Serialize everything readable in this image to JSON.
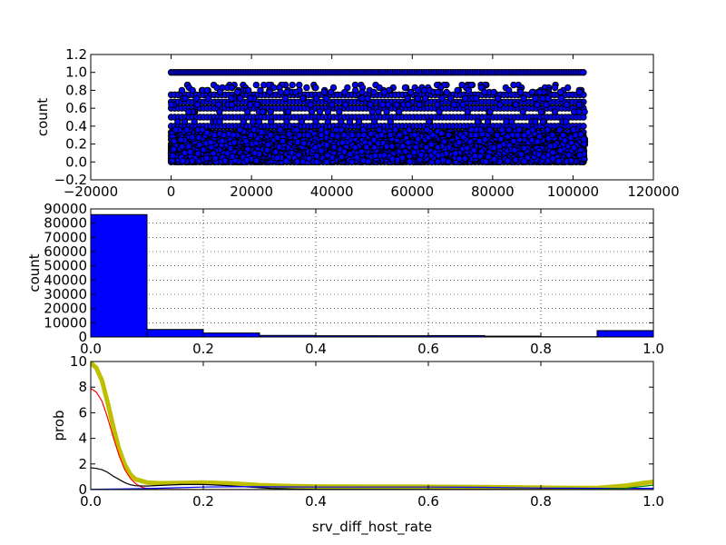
{
  "chart_data": [
    {
      "type": "scatter",
      "xlabel": "",
      "ylabel": "count",
      "xlim": [
        -20000,
        120000
      ],
      "ylim": [
        -0.2,
        1.2
      ],
      "xticks": [
        "−20000",
        "0",
        "20000",
        "40000",
        "60000",
        "80000",
        "100000",
        "120000"
      ],
      "yticks": [
        "−0.2",
        "0.0",
        "0.2",
        "0.4",
        "0.6",
        "0.8",
        "1.0",
        "1.2"
      ],
      "grid": false,
      "marker_color": "#0000ff",
      "edge_color": "#000000",
      "x_range_of_points": [
        0,
        103000
      ],
      "dense_levels": [
        1.0,
        0.75,
        0.67,
        0.6,
        0.5,
        0.4,
        0.33,
        0.29,
        0.25,
        0.2,
        0.18,
        0.17,
        0.15,
        0.14,
        0.13,
        0.12,
        0.11,
        0.1,
        0.09,
        0.08,
        0.07,
        0.06,
        0.05,
        0.04,
        0.03,
        0.02,
        0.01,
        0.0
      ],
      "sparse_levels": [
        0.86,
        0.83,
        0.8,
        0.78,
        0.71,
        0.64,
        0.56,
        0.45,
        0.36,
        0.3
      ]
    },
    {
      "type": "bar",
      "xlabel": "",
      "ylabel": "count",
      "xlim": [
        0.0,
        1.0
      ],
      "ylim": [
        0,
        90000
      ],
      "xticks": [
        "0.0",
        "0.2",
        "0.4",
        "0.6",
        "0.8",
        "1.0"
      ],
      "yticks": [
        "0",
        "10000",
        "20000",
        "30000",
        "40000",
        "50000",
        "60000",
        "70000",
        "80000",
        "90000"
      ],
      "grid": true,
      "bar_color": "#0000ff",
      "bins": [
        {
          "x0": 0.0,
          "x1": 0.1,
          "count": 86000
        },
        {
          "x0": 0.1,
          "x1": 0.2,
          "count": 5300
        },
        {
          "x0": 0.2,
          "x1": 0.3,
          "count": 2800
        },
        {
          "x0": 0.3,
          "x1": 0.4,
          "count": 1100
        },
        {
          "x0": 0.4,
          "x1": 0.5,
          "count": 900
        },
        {
          "x0": 0.5,
          "x1": 0.6,
          "count": 900
        },
        {
          "x0": 0.6,
          "x1": 0.7,
          "count": 1000
        },
        {
          "x0": 0.7,
          "x1": 0.8,
          "count": 600
        },
        {
          "x0": 0.8,
          "x1": 0.9,
          "count": 200
        },
        {
          "x0": 0.9,
          "x1": 1.0,
          "count": 4500
        }
      ]
    },
    {
      "type": "line",
      "xlabel": "srv_diff_host_rate",
      "ylabel": "prob",
      "xlim": [
        0.0,
        1.0
      ],
      "ylim": [
        0,
        10
      ],
      "xticks": [
        "0.0",
        "0.2",
        "0.4",
        "0.6",
        "0.8",
        "1.0"
      ],
      "yticks": [
        "0",
        "2",
        "4",
        "6",
        "8",
        "10"
      ],
      "grid": false,
      "series": [
        {
          "color": "#bfbf00",
          "width": 5,
          "points": [
            [
              0.0,
              9.9
            ],
            [
              0.01,
              9.5
            ],
            [
              0.02,
              8.5
            ],
            [
              0.03,
              6.8
            ],
            [
              0.04,
              4.9
            ],
            [
              0.05,
              3.2
            ],
            [
              0.06,
              2.0
            ],
            [
              0.07,
              1.2
            ],
            [
              0.08,
              0.8
            ],
            [
              0.1,
              0.55
            ],
            [
              0.12,
              0.5
            ],
            [
              0.16,
              0.52
            ],
            [
              0.2,
              0.55
            ],
            [
              0.25,
              0.48
            ],
            [
              0.3,
              0.35
            ],
            [
              0.35,
              0.28
            ],
            [
              0.4,
              0.24
            ],
            [
              0.5,
              0.22
            ],
            [
              0.6,
              0.22
            ],
            [
              0.7,
              0.2
            ],
            [
              0.8,
              0.15
            ],
            [
              0.85,
              0.12
            ],
            [
              0.9,
              0.12
            ],
            [
              0.95,
              0.3
            ],
            [
              0.98,
              0.5
            ],
            [
              1.0,
              0.6
            ]
          ]
        },
        {
          "color": "#ff0000",
          "width": 1.2,
          "points": [
            [
              0.0,
              7.9
            ],
            [
              0.01,
              7.6
            ],
            [
              0.02,
              6.9
            ],
            [
              0.03,
              5.6
            ],
            [
              0.04,
              4.1
            ],
            [
              0.05,
              2.7
            ],
            [
              0.06,
              1.6
            ],
            [
              0.07,
              0.9
            ],
            [
              0.08,
              0.45
            ],
            [
              0.09,
              0.2
            ],
            [
              0.1,
              0.08
            ],
            [
              0.12,
              0.02
            ],
            [
              0.2,
              0.0
            ],
            [
              1.0,
              0.0
            ]
          ]
        },
        {
          "color": "#000000",
          "width": 1.2,
          "points": [
            [
              0.0,
              1.7
            ],
            [
              0.01,
              1.65
            ],
            [
              0.02,
              1.55
            ],
            [
              0.03,
              1.35
            ],
            [
              0.04,
              1.05
            ],
            [
              0.05,
              0.8
            ],
            [
              0.06,
              0.55
            ],
            [
              0.07,
              0.38
            ],
            [
              0.08,
              0.3
            ],
            [
              0.1,
              0.28
            ],
            [
              0.12,
              0.32
            ],
            [
              0.16,
              0.4
            ],
            [
              0.2,
              0.4
            ],
            [
              0.24,
              0.32
            ],
            [
              0.28,
              0.2
            ],
            [
              0.32,
              0.1
            ],
            [
              0.36,
              0.04
            ],
            [
              0.4,
              0.02
            ],
            [
              1.0,
              0.0
            ]
          ]
        },
        {
          "color": "#0000ff",
          "width": 1.2,
          "points": [
            [
              0.0,
              0.02
            ],
            [
              0.05,
              0.05
            ],
            [
              0.1,
              0.08
            ],
            [
              0.15,
              0.14
            ],
            [
              0.2,
              0.2
            ],
            [
              0.25,
              0.22
            ],
            [
              0.3,
              0.22
            ],
            [
              0.4,
              0.2
            ],
            [
              0.5,
              0.2
            ],
            [
              0.6,
              0.2
            ],
            [
              0.7,
              0.18
            ],
            [
              0.8,
              0.12
            ],
            [
              0.9,
              0.1
            ],
            [
              1.0,
              0.1
            ]
          ]
        },
        {
          "color": "#008000",
          "width": 1.2,
          "points": [
            [
              0.0,
              0.0
            ],
            [
              0.85,
              0.0
            ],
            [
              0.9,
              0.02
            ],
            [
              0.95,
              0.1
            ],
            [
              0.98,
              0.25
            ],
            [
              1.0,
              0.35
            ]
          ]
        }
      ]
    }
  ]
}
